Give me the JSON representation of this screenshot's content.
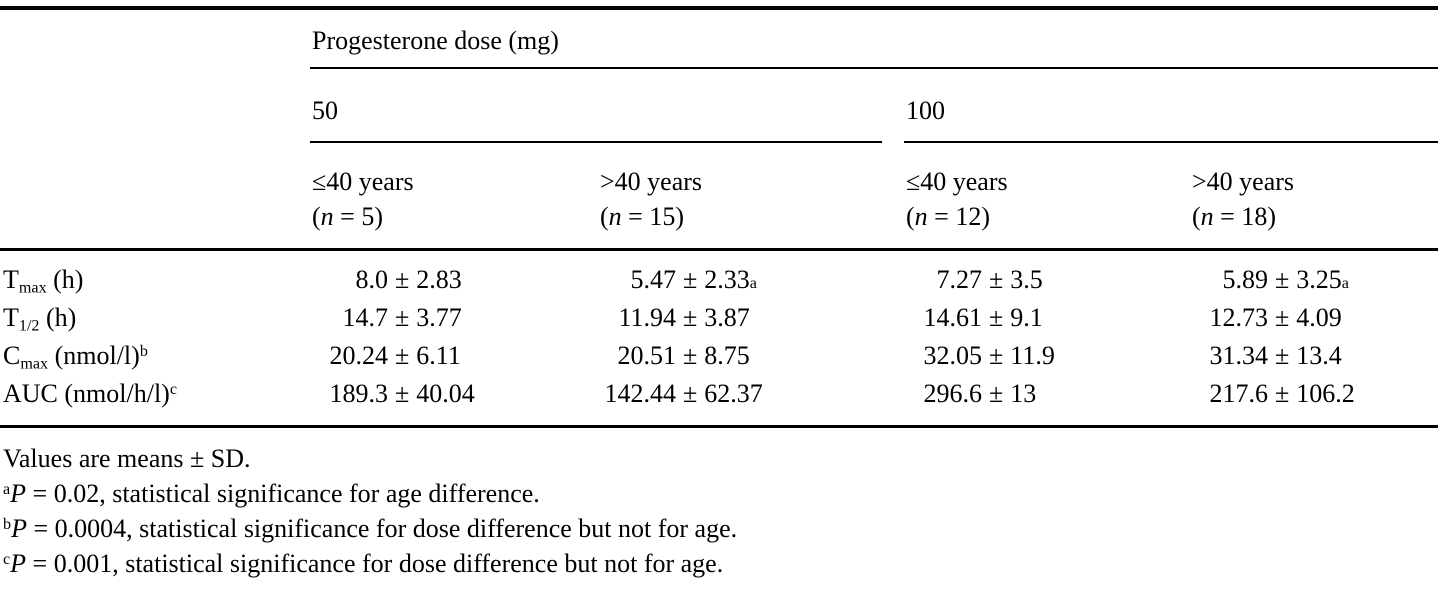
{
  "pm": "±",
  "table": {
    "title": "Progesterone dose (mg)",
    "dose_groups": [
      {
        "label": "50",
        "columns": [
          {
            "age": "≤40 years",
            "paren_open": "(",
            "n_var": "n",
            "n_rest": " = 5)"
          },
          {
            "age": ">40 years",
            "paren_open": "(",
            "n_var": "n",
            "n_rest": " = 15)"
          }
        ]
      },
      {
        "label": "100",
        "columns": [
          {
            "age": "≤40 years",
            "paren_open": "(",
            "n_var": "n",
            "n_rest": " = 12)"
          },
          {
            "age": ">40 years",
            "paren_open": "(",
            "n_var": "n",
            "n_rest": " = 18)"
          }
        ]
      }
    ],
    "rows": [
      {
        "label": {
          "pre": "T",
          "sub": "max",
          "post": " (h)",
          "sup": ""
        },
        "cells": [
          {
            "mean": "8.0",
            "sd": "2.83",
            "sup": ""
          },
          {
            "mean": "5.47",
            "sd": "2.33",
            "sup": "a"
          },
          {
            "mean": "7.27",
            "sd": "3.5",
            "sup": ""
          },
          {
            "mean": "5.89",
            "sd": "3.25",
            "sup": "a"
          }
        ]
      },
      {
        "label": {
          "pre": "T",
          "sub": "1/2",
          "post": " (h)",
          "sup": ""
        },
        "cells": [
          {
            "mean": "14.7",
            "sd": "3.77",
            "sup": ""
          },
          {
            "mean": "11.94",
            "sd": "3.87",
            "sup": ""
          },
          {
            "mean": "14.61",
            "sd": "9.1",
            "sup": ""
          },
          {
            "mean": "12.73",
            "sd": "4.09",
            "sup": ""
          }
        ]
      },
      {
        "label": {
          "pre": "C",
          "sub": "max",
          "post": " (nmol/l)",
          "sup": "b"
        },
        "cells": [
          {
            "mean": "20.24",
            "sd": "6.11",
            "sup": ""
          },
          {
            "mean": "20.51",
            "sd": "8.75",
            "sup": ""
          },
          {
            "mean": "32.05",
            "sd": "11.9",
            "sup": ""
          },
          {
            "mean": "31.34",
            "sd": "13.4",
            "sup": ""
          }
        ]
      },
      {
        "label": {
          "pre": "AUC (nmol/h/l)",
          "sub": "",
          "post": "",
          "sup": "c"
        },
        "cells": [
          {
            "mean": "189.3",
            "sd": "40.04",
            "sup": ""
          },
          {
            "mean": "142.44",
            "sd": "62.37",
            "sup": ""
          },
          {
            "mean": "296.6",
            "sd": "13",
            "sup": ""
          },
          {
            "mean": "217.6",
            "sd": "106.2",
            "sup": ""
          }
        ]
      }
    ],
    "footnotes": [
      {
        "sup": "",
        "italic": "",
        "text": "Values are means ± SD."
      },
      {
        "sup": "a",
        "italic": "P",
        "text": " = 0.02, statistical significance for age difference."
      },
      {
        "sup": "b",
        "italic": "P",
        "text": " = 0.0004, statistical significance for dose difference but not for age."
      },
      {
        "sup": "c",
        "italic": "P",
        "text": " = 0.001, statistical significance for dose difference but not for age."
      }
    ]
  }
}
